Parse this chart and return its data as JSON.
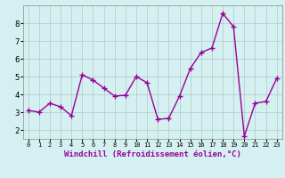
{
  "x": [
    0,
    1,
    2,
    3,
    4,
    5,
    6,
    7,
    8,
    9,
    10,
    11,
    12,
    13,
    14,
    15,
    16,
    17,
    18,
    19,
    20,
    21,
    22,
    23
  ],
  "y": [
    3.1,
    3.0,
    3.5,
    3.3,
    2.8,
    5.1,
    4.8,
    4.35,
    3.9,
    3.95,
    5.0,
    4.65,
    2.6,
    2.65,
    3.9,
    5.45,
    6.35,
    6.6,
    8.55,
    7.8,
    1.65,
    3.5,
    3.6,
    4.9
  ],
  "line_color": "#990099",
  "marker": "+",
  "marker_size": 4,
  "linewidth": 1.0,
  "xlabel": "Windchill (Refroidissement éolien,°C)",
  "xlabel_fontsize": 6.5,
  "bg_color": "#d5f0f0",
  "grid_color": "#b0c8c8",
  "yticks": [
    2,
    3,
    4,
    5,
    6,
    7,
    8
  ],
  "xticks": [
    0,
    1,
    2,
    3,
    4,
    5,
    6,
    7,
    8,
    9,
    10,
    11,
    12,
    13,
    14,
    15,
    16,
    17,
    18,
    19,
    20,
    21,
    22,
    23
  ],
  "ylim": [
    1.5,
    9.0
  ],
  "xlim": [
    -0.5,
    23.5
  ],
  "ytick_fontsize": 6.5,
  "xtick_fontsize": 5.0
}
